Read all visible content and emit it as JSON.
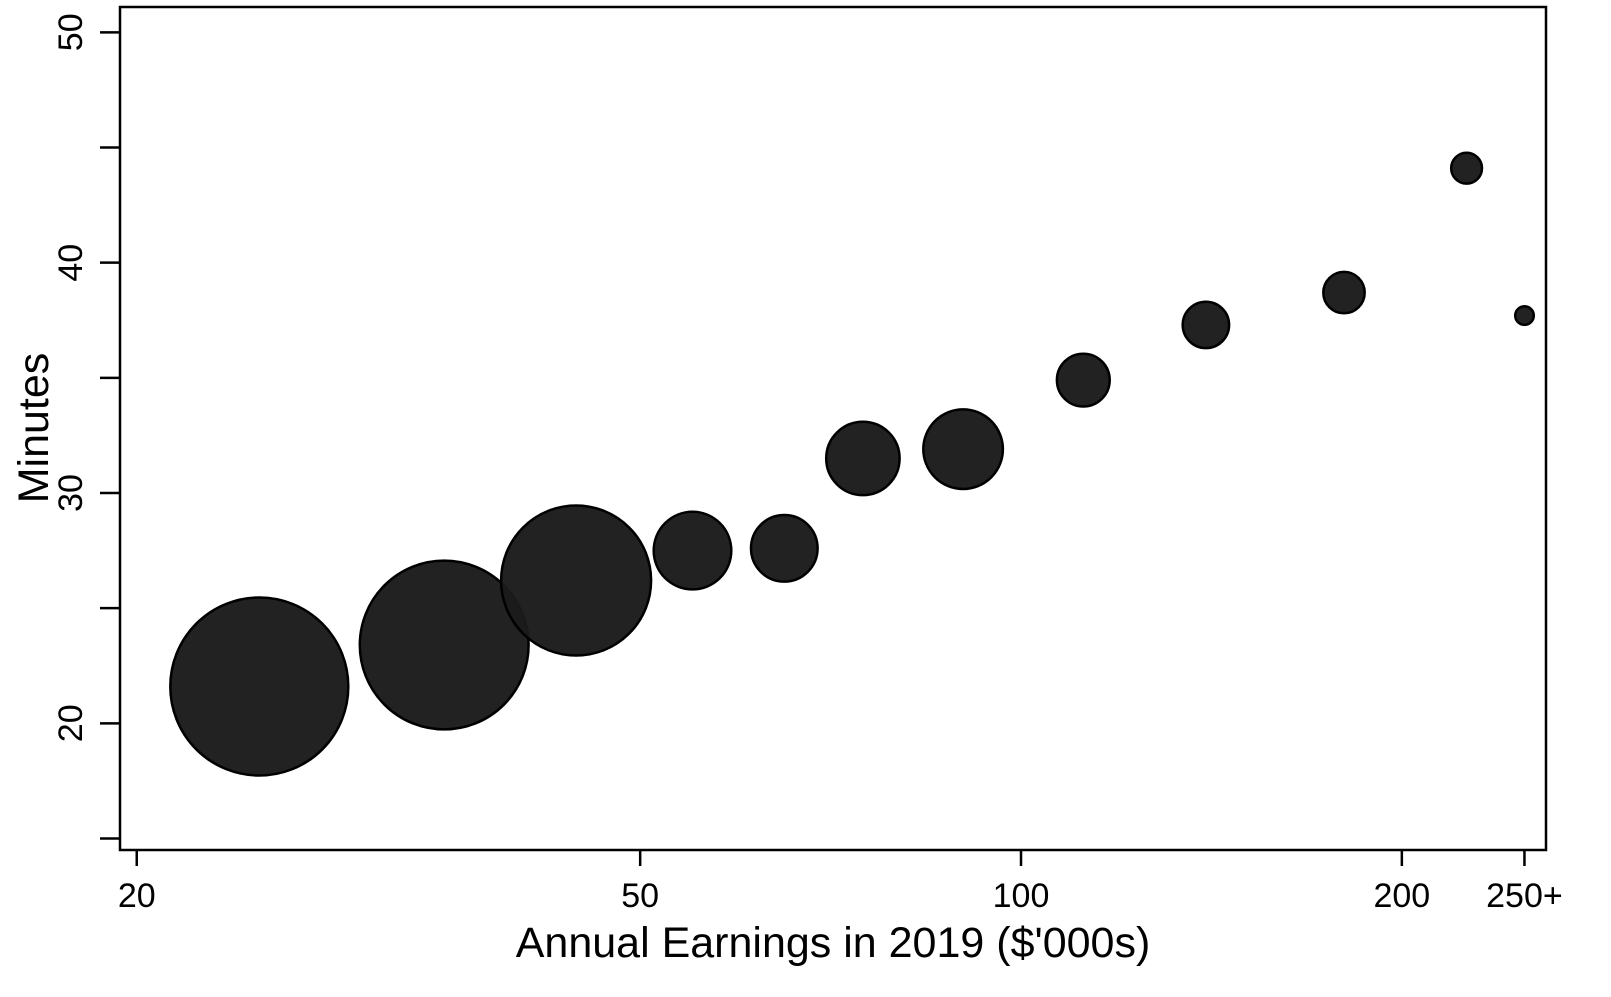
{
  "chart_data": {
    "type": "scatter",
    "title": "",
    "xlabel": "Annual Earnings in 2019 ($'000s)",
    "ylabel": "Minutes",
    "x_scale": "log",
    "xlim": [
      19.4,
      260
    ],
    "ylim": [
      14.5,
      51.1
    ],
    "x_ticks": [
      {
        "value": 20,
        "label": "20"
      },
      {
        "value": 50,
        "label": "50"
      },
      {
        "value": 100,
        "label": "100"
      },
      {
        "value": 200,
        "label": "200"
      },
      {
        "value": 250,
        "label": "250+"
      }
    ],
    "y_ticks": [
      {
        "value": 20,
        "label": "20"
      },
      {
        "value": 30,
        "label": "30"
      },
      {
        "value": 40,
        "label": "40"
      },
      {
        "value": 50,
        "label": "50"
      }
    ],
    "y_minor_ticks": [
      15,
      25,
      35,
      45
    ],
    "grid": false,
    "legend": "none",
    "marker_color": "#1b1b1b",
    "marker_opacity": 0.97,
    "points": [
      {
        "x": 25,
        "y": 21.6,
        "weight": 1.0
      },
      {
        "x": 35,
        "y": 23.4,
        "weight": 0.9
      },
      {
        "x": 44.5,
        "y": 26.2,
        "weight": 0.71
      },
      {
        "x": 55,
        "y": 27.5,
        "weight": 0.19
      },
      {
        "x": 65,
        "y": 27.6,
        "weight": 0.14
      },
      {
        "x": 75,
        "y": 31.5,
        "weight": 0.17
      },
      {
        "x": 90,
        "y": 31.9,
        "weight": 0.2
      },
      {
        "x": 112,
        "y": 34.9,
        "weight": 0.088
      },
      {
        "x": 140,
        "y": 37.3,
        "weight": 0.068
      },
      {
        "x": 180,
        "y": 38.7,
        "weight": 0.054
      },
      {
        "x": 225,
        "y": 44.1,
        "weight": 0.03
      },
      {
        "x": 250,
        "y": 37.7,
        "weight": 0.011
      }
    ]
  }
}
